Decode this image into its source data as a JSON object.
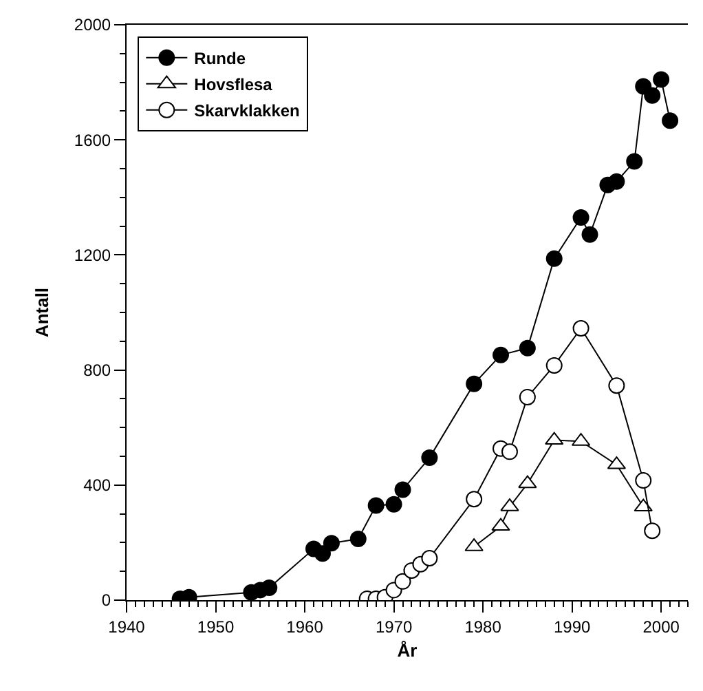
{
  "chart_data": {
    "type": "line",
    "xlabel": "År",
    "ylabel": "Antall",
    "xlim": [
      1940,
      2003
    ],
    "xticks": [
      1940,
      1950,
      1960,
      1970,
      1980,
      1990,
      2000
    ],
    "ylim": [
      0,
      2000
    ],
    "yticks": [
      0,
      400,
      800,
      1200,
      1600,
      2000
    ],
    "legend": "top left",
    "line_style": "solid",
    "series": [
      {
        "name": "Runde",
        "color": "#000000",
        "marker": "circle",
        "x": [
          1946,
          1947,
          1954,
          1955,
          1956,
          1961,
          1962,
          1963,
          1966,
          1968,
          1970,
          1971,
          1974,
          1979,
          1982,
          1985,
          1988,
          1991,
          1992,
          1994,
          1995,
          1997,
          1998,
          1999,
          2000,
          2001
        ],
        "values": [
          5,
          10,
          27,
          35,
          43,
          178,
          162,
          198,
          213,
          329,
          333,
          384,
          495,
          752,
          852,
          876,
          1187,
          1330,
          1271,
          1443,
          1455,
          1525,
          1786,
          1754,
          1810,
          1667
        ]
      },
      {
        "name": "Hovsflesa",
        "color": "#ffffff",
        "marker": "triangle",
        "x": [
          1979,
          1982,
          1983,
          1985,
          1988,
          1991,
          1995,
          1998
        ],
        "values": [
          186,
          257,
          325,
          405,
          556,
          552,
          471,
          324
        ]
      },
      {
        "name": "Skarvklakken",
        "color": "#ffffff",
        "marker": "circle",
        "x": [
          1967,
          1968,
          1969,
          1970,
          1971,
          1972,
          1973,
          1974,
          1979,
          1982,
          1983,
          1985,
          1988,
          1991,
          1995,
          1998,
          1999
        ],
        "values": [
          5,
          5,
          10,
          35,
          65,
          103,
          125,
          146,
          351,
          527,
          516,
          706,
          816,
          945,
          746,
          416,
          241
        ]
      }
    ]
  }
}
